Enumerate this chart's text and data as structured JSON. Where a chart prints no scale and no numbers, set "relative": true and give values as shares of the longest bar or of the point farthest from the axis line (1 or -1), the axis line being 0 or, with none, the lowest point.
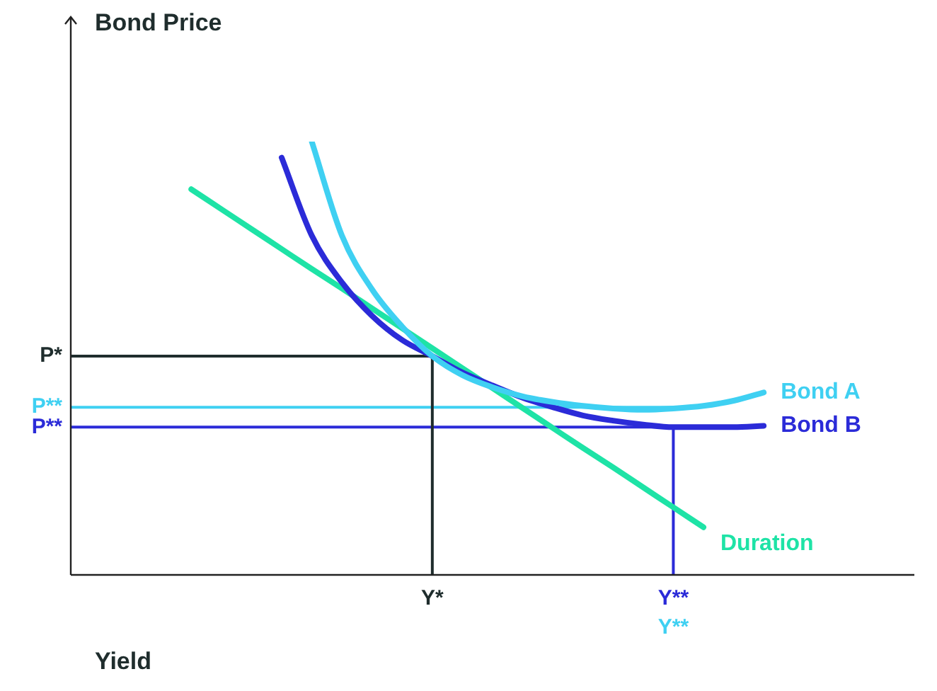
{
  "chart_data": {
    "type": "line",
    "relative": true,
    "xlabel": "Yield",
    "ylabel": "Bond Price",
    "legend": false,
    "grid": false,
    "marker": "none",
    "categories": [
      null,
      null,
      null,
      null,
      null,
      null,
      null,
      null,
      null,
      null,
      null,
      null,
      "Y*",
      null,
      null,
      null,
      null,
      null,
      null,
      null,
      "Y**",
      null,
      null,
      null,
      null,
      null,
      null,
      null,
      null
    ],
    "series": [
      {
        "name": "Bond A",
        "color": "#3fd0f2",
        "values": [
          null,
          null,
          null,
          null,
          null,
          null,
          null,
          null,
          1.0,
          0.783,
          0.659,
          0.573,
          0.505,
          0.461,
          0.433,
          0.412,
          0.399,
          0.39,
          0.384,
          0.381,
          0.384,
          0.39,
          0.402,
          0.421,
          null,
          null,
          null,
          null,
          null
        ]
      },
      {
        "name": "Bond B",
        "color": "#2b2bd8",
        "values": [
          null,
          null,
          null,
          null,
          null,
          null,
          null,
          0.963,
          0.783,
          0.675,
          0.598,
          0.542,
          0.505,
          0.467,
          0.437,
          0.409,
          0.387,
          0.368,
          0.356,
          0.347,
          0.341,
          0.341,
          0.341,
          0.344,
          null,
          null,
          null,
          null,
          null
        ]
      },
      {
        "name": "Duration",
        "color": "#1ee3a6",
        "values": [
          null,
          null,
          null,
          null,
          0.89,
          0.844,
          0.798,
          0.752,
          0.706,
          0.661,
          0.615,
          0.569,
          0.523,
          0.477,
          0.431,
          0.385,
          0.339,
          0.293,
          0.248,
          0.202,
          0.156,
          0.11,
          null,
          null,
          null,
          null,
          null,
          null,
          null
        ]
      }
    ],
    "ref_lines": [
      {
        "axis": "y",
        "value": 0.505,
        "label": "P*",
        "color": "#1f2d2d"
      },
      {
        "axis": "y",
        "value": 0.387,
        "label": "P**",
        "color": "#3fd0f2"
      },
      {
        "axis": "y",
        "value": 0.341,
        "label": "P**",
        "color": "#2b2bd8"
      },
      {
        "axis": "x",
        "value": "Y*",
        "color": "#1f2d2d"
      },
      {
        "axis": "x",
        "value": "Y**",
        "color": "#2b2bd8"
      }
    ],
    "annotations": [
      "Y**"
    ]
  }
}
